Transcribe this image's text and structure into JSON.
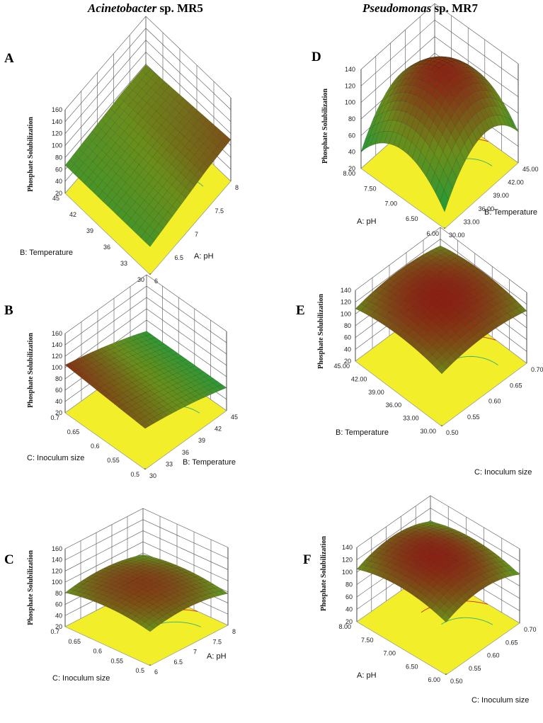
{
  "figure": {
    "column_titles": [
      {
        "genus": "Acinetobacter",
        "strain": "sp. MR5"
      },
      {
        "genus": "Pseudomonas",
        "strain": "sp. MR7"
      }
    ]
  },
  "colors": {
    "floor": "#f2ef2a",
    "low": "#1f9b3a",
    "mid": "#6a8e1c",
    "high": "#8c1a12",
    "contour_low": "#2fae7a",
    "contour_high": "#d8231c",
    "low_edge": "#2a4fb0"
  },
  "chart_data": [
    {
      "id": "A",
      "type": "surface3d",
      "organism": "Acinetobacter sp. MR5",
      "zlabel": "Phosphate Solubilization",
      "zticks": [
        "160",
        "140",
        "120",
        "100",
        "80",
        "60",
        "40",
        "20"
      ],
      "zlim": [
        20,
        160
      ],
      "x_axis": {
        "label": "A: pH",
        "ticks": [
          "6",
          "6.5",
          "7",
          "7.5",
          "8"
        ],
        "range": [
          6,
          8
        ]
      },
      "y_axis": {
        "label": "B: Temperature",
        "ticks": [
          "30",
          "33",
          "36",
          "39",
          "42",
          "45"
        ],
        "range": [
          30,
          45
        ]
      },
      "surface_z_estimate": {
        "min": 55,
        "max": 100
      },
      "peak": "high-pH low-temperature corner"
    },
    {
      "id": "B",
      "type": "surface3d",
      "organism": "Acinetobacter sp. MR5",
      "zlabel": "Phosphate Solubilization",
      "zticks": [
        "160",
        "140",
        "120",
        "100",
        "80",
        "60",
        "40",
        "20"
      ],
      "zlim": [
        20,
        160
      ],
      "x_axis": {
        "label": "B: Temperature",
        "ticks": [
          "30",
          "33",
          "36",
          "39",
          "42",
          "45"
        ],
        "range": [
          30,
          45
        ]
      },
      "y_axis": {
        "label": "C: Inoculum size",
        "ticks": [
          "0.5",
          "0.55",
          "0.6",
          "0.65",
          "0.7"
        ],
        "range": [
          0.5,
          0.7
        ]
      },
      "surface_z_estimate": {
        "min": 55,
        "max": 110
      },
      "peak": "low temperature, high inoculum"
    },
    {
      "id": "C",
      "type": "surface3d",
      "organism": "Acinetobacter sp. MR5",
      "zlabel": "Phosphate Solubilization",
      "zticks": [
        "160",
        "140",
        "120",
        "100",
        "80",
        "60",
        "40",
        "20"
      ],
      "zlim": [
        20,
        160
      ],
      "x_axis": {
        "label": "A: pH",
        "ticks": [
          "6",
          "6.5",
          "7",
          "7.5",
          "8"
        ],
        "range": [
          6,
          8
        ]
      },
      "y_axis": {
        "label": "C: Inoculum size",
        "ticks": [
          "0.5",
          "0.55",
          "0.6",
          "0.65",
          "0.7"
        ],
        "range": [
          0.5,
          0.7
        ]
      },
      "surface_z_estimate": {
        "min": 60,
        "max": 105
      },
      "peak": "central dome"
    },
    {
      "id": "D",
      "type": "surface3d",
      "organism": "Pseudomonas sp. MR7",
      "zlabel": "Phosphate Solubilization",
      "zticks": [
        "140",
        "120",
        "100",
        "80",
        "60",
        "40",
        "20"
      ],
      "zlim": [
        20,
        140
      ],
      "x_axis": {
        "label": "A: pH",
        "ticks": [
          "6.00",
          "6.50",
          "7.00",
          "7.50",
          "8.00"
        ],
        "range": [
          6,
          8
        ]
      },
      "y_axis": {
        "label": "B: Temperature",
        "ticks": [
          "30.00",
          "33.00",
          "36.00",
          "39.00",
          "42.00",
          "45.00"
        ],
        "range": [
          30,
          45
        ]
      },
      "surface_z_estimate": {
        "min": 40,
        "max": 135
      },
      "peak": "central dome"
    },
    {
      "id": "E",
      "type": "surface3d",
      "organism": "Pseudomonas sp. MR7",
      "zlabel": "Phosphate Solubilization",
      "zticks": [
        "140",
        "120",
        "100",
        "80",
        "60",
        "40",
        "20"
      ],
      "zlim": [
        20,
        140
      ],
      "x_axis": {
        "label": "B: Temperature",
        "ticks": [
          "30.00",
          "33.00",
          "36.00",
          "39.00",
          "42.00",
          "45.00"
        ],
        "range": [
          30,
          45
        ]
      },
      "y_axis": {
        "label": "C: Inoculum size",
        "ticks": [
          "0.50",
          "0.55",
          "0.60",
          "0.65",
          "0.70"
        ],
        "range": [
          0.5,
          0.7
        ]
      },
      "surface_z_estimate": {
        "min": 85,
        "max": 130
      },
      "peak": "central dome"
    },
    {
      "id": "F",
      "type": "surface3d",
      "organism": "Pseudomonas sp. MR7",
      "zlabel": "Phosphate Solubilization",
      "zticks": [
        "140",
        "120",
        "100",
        "80",
        "60",
        "40",
        "20"
      ],
      "zlim": [
        20,
        140
      ],
      "x_axis": {
        "label": "A: pH",
        "ticks": [
          "6.00",
          "6.50",
          "7.00",
          "7.50",
          "8.00"
        ],
        "range": [
          6,
          8
        ]
      },
      "y_axis": {
        "label": "C: Inoculum size",
        "ticks": [
          "0.50",
          "0.55",
          "0.60",
          "0.65",
          "0.70"
        ],
        "range": [
          0.5,
          0.7
        ]
      },
      "surface_z_estimate": {
        "min": 80,
        "max": 132
      },
      "peak": "central dome"
    }
  ]
}
